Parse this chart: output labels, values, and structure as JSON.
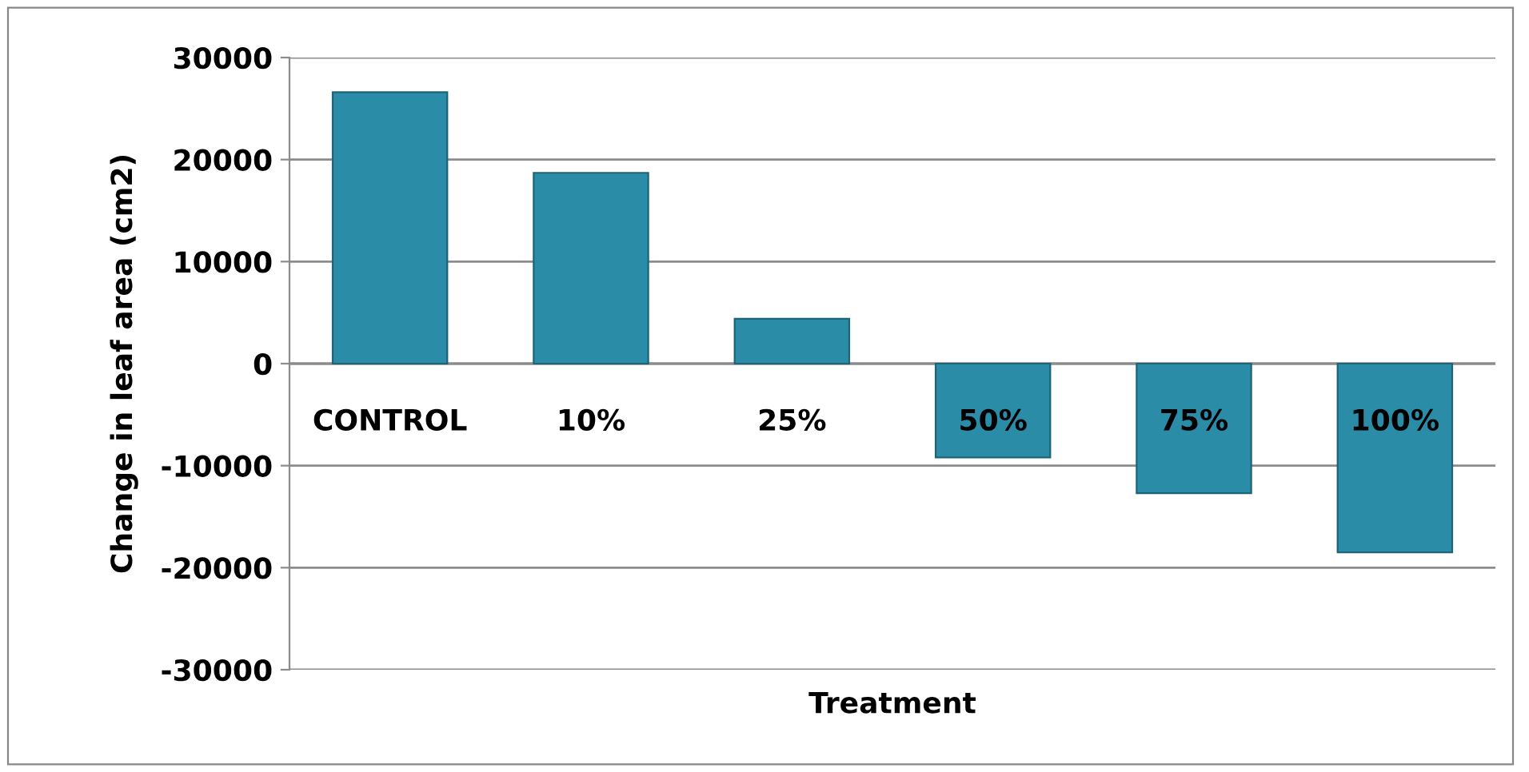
{
  "chart_data": {
    "type": "bar",
    "xlabel": "Treatment",
    "ylabel": "Change in leaf area (cm2)",
    "categories": [
      "CONTROL",
      "10%",
      "25%",
      "50%",
      "75%",
      "100%"
    ],
    "values": [
      26600,
      18700,
      4400,
      -9200,
      -12700,
      -18500
    ],
    "color": "#2b8ca8",
    "ylim": [
      -30000,
      30000
    ],
    "yticks": [
      -30000,
      -20000,
      -10000,
      0,
      10000,
      20000,
      30000
    ],
    "grid": "y"
  }
}
